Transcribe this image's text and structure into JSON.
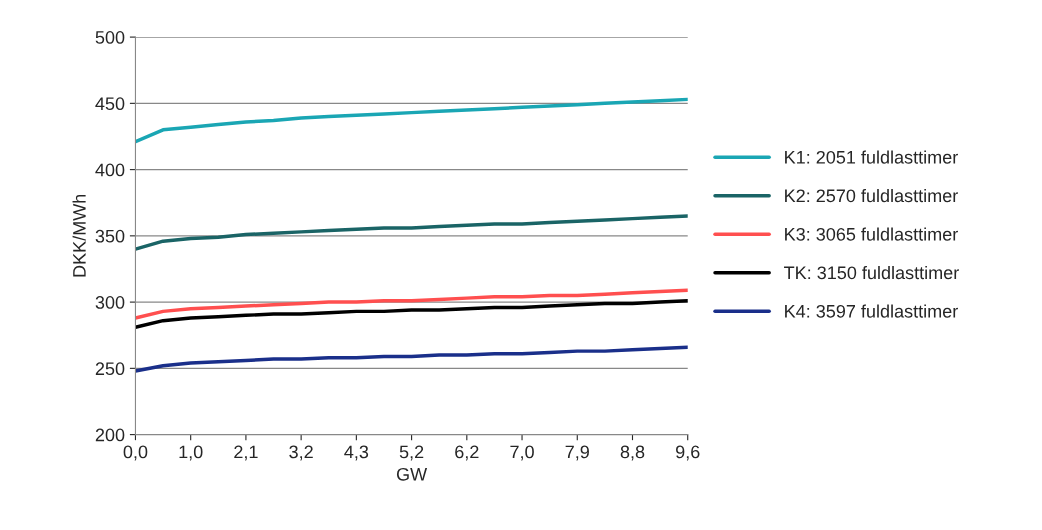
{
  "chart_data": {
    "type": "line",
    "xlabel": "GW",
    "ylabel": "DKK/MWh",
    "categories": [
      "0,0",
      null,
      "1,0",
      null,
      "2,1",
      null,
      "3,2",
      null,
      "4,3",
      null,
      "5,2",
      null,
      "6,2",
      null,
      "7,0",
      null,
      "7,9",
      null,
      "8,8",
      null,
      "9,6"
    ],
    "series": [
      {
        "name": "K1: 2051 fuldlasttimer",
        "color": "#1aa6b4",
        "values": [
          421,
          430,
          432,
          434,
          436,
          437,
          439,
          440,
          441,
          442,
          443,
          444,
          445,
          446,
          447,
          448,
          449,
          450,
          451,
          452,
          453
        ]
      },
      {
        "name": "K2: 2570 fuldlasttimer",
        "color": "#1a6466",
        "values": [
          340,
          346,
          348,
          349,
          351,
          352,
          353,
          354,
          355,
          356,
          356,
          357,
          358,
          359,
          359,
          360,
          361,
          362,
          363,
          364,
          365
        ]
      },
      {
        "name": "K3: 3065 fuldlasttimer",
        "color": "#ff4f4f",
        "values": [
          288,
          293,
          295,
          296,
          297,
          298,
          299,
          300,
          300,
          301,
          301,
          302,
          303,
          304,
          304,
          305,
          305,
          306,
          307,
          308,
          309
        ]
      },
      {
        "name": "TK: 3150 fuldlasttimer",
        "color": "#000000",
        "values": [
          281,
          286,
          288,
          289,
          290,
          291,
          291,
          292,
          293,
          293,
          294,
          294,
          295,
          296,
          296,
          297,
          298,
          299,
          299,
          300,
          301
        ]
      },
      {
        "name": "K4: 3597 fuldlasttimer",
        "color": "#1a2f8a",
        "values": [
          248,
          252,
          254,
          255,
          256,
          257,
          257,
          258,
          258,
          259,
          259,
          260,
          260,
          261,
          261,
          262,
          263,
          263,
          264,
          265,
          266
        ]
      }
    ],
    "ylim": [
      200,
      500
    ],
    "yticks": [
      200,
      250,
      300,
      350,
      400,
      450,
      500
    ],
    "grid": "y",
    "legend": "right",
    "marker": "none",
    "line_style": "solid"
  }
}
